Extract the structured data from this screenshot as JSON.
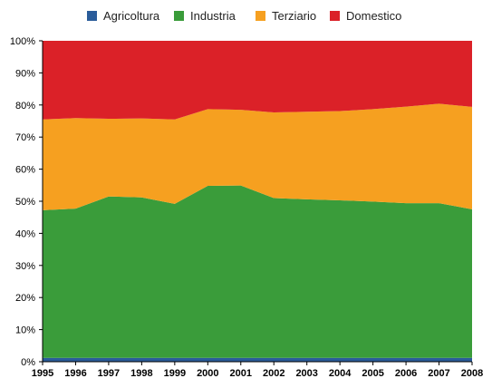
{
  "chart_data": {
    "type": "area",
    "stacked": true,
    "x": [
      1995,
      1996,
      1997,
      1998,
      1999,
      2000,
      2001,
      2002,
      2003,
      2004,
      2005,
      2006,
      2007,
      2008
    ],
    "x_tick_labels": [
      "1995",
      "1996",
      "1997",
      "1998",
      "1999",
      "2000",
      "2001",
      "2002",
      "2003",
      "2004",
      "2005",
      "2006",
      "2007",
      "2008"
    ],
    "y_tick_labels": [
      "0%",
      "10%",
      "20%",
      "30%",
      "40%",
      "50%",
      "60%",
      "70%",
      "80%",
      "90%",
      "100%"
    ],
    "ylim": [
      0,
      100
    ],
    "legend_position": "top",
    "grid": false,
    "series": [
      {
        "name": "Agricoltura",
        "color": "#2a5c9a",
        "values": [
          1.2,
          1.2,
          1.2,
          1.2,
          1.2,
          1.2,
          1.2,
          1.2,
          1.2,
          1.2,
          1.2,
          1.2,
          1.2,
          1.2
        ]
      },
      {
        "name": "Industria",
        "color": "#3a9c3a",
        "values": [
          46.0,
          46.5,
          50.3,
          50.0,
          48.0,
          53.6,
          53.7,
          49.8,
          49.4,
          49.1,
          48.7,
          48.2,
          48.2,
          46.3
        ]
      },
      {
        "name": "Terziario",
        "color": "#f6a020",
        "values": [
          28.3,
          28.2,
          24.2,
          24.6,
          26.3,
          23.9,
          23.6,
          26.7,
          27.3,
          27.8,
          28.8,
          30.1,
          31.0,
          31.9
        ]
      },
      {
        "name": "Domestico",
        "color": "#db2128",
        "values": [
          24.5,
          24.1,
          24.3,
          24.2,
          24.5,
          21.3,
          21.5,
          22.3,
          22.1,
          21.9,
          21.3,
          20.5,
          19.6,
          20.6
        ]
      }
    ]
  }
}
